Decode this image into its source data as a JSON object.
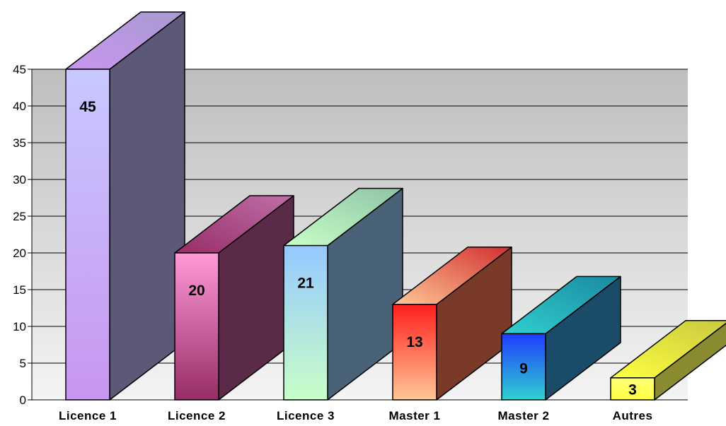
{
  "chart_data": {
    "type": "bar",
    "three_d": true,
    "categories": [
      "Licence 1",
      "Licence 2",
      "Licence 3",
      "Master 1",
      "Master 2",
      "Autres"
    ],
    "values": [
      45,
      20,
      21,
      13,
      9,
      3
    ],
    "data_labels": [
      "45",
      "20",
      "21",
      "13",
      "9",
      "3"
    ],
    "ylim": [
      0,
      45
    ],
    "yticks": [
      0,
      5,
      10,
      15,
      20,
      25,
      30,
      35,
      40,
      45
    ],
    "ytick_labels": [
      "0",
      "5",
      "10",
      "15",
      "20",
      "25",
      "30",
      "35",
      "40",
      "45"
    ],
    "grid": true,
    "legend": "none",
    "title": "",
    "xlabel": "",
    "ylabel": "",
    "colors": [
      {
        "front_top": "#c8c8ff",
        "front_bottom": "#c896f0",
        "side": "#5c5878",
        "top": "#a89ad0"
      },
      {
        "front_top": "#ff9ad8",
        "front_bottom": "#962d66",
        "side": "#5a2a48",
        "top": "#c06fa8"
      },
      {
        "front_top": "#96c8ff",
        "front_bottom": "#c8ffc8",
        "side": "#4a6278",
        "top": "#8ec4a6"
      },
      {
        "front_top": "#ff1e1e",
        "front_bottom": "#ffc896",
        "side": "#7a3a2a",
        "top": "#d23030"
      },
      {
        "front_top": "#1e3cff",
        "front_bottom": "#30d0d0",
        "side": "#1a4c6a",
        "top": "#1a8aa0"
      },
      {
        "front_top": "#ffff7a",
        "front_bottom": "#ffff40",
        "side": "#8a8a30",
        "top": "#c8c840"
      }
    ]
  }
}
